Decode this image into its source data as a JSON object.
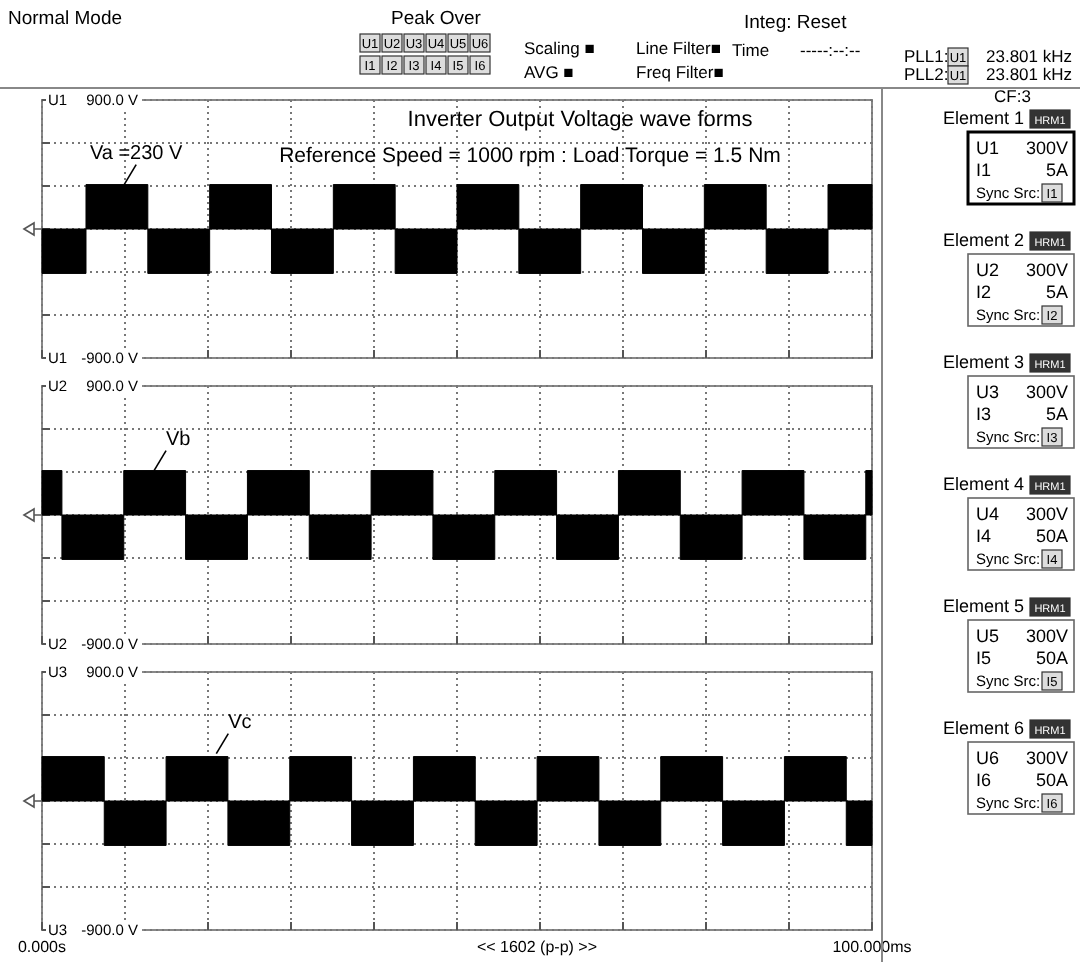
{
  "chart_data": [
    {
      "type": "area",
      "title": "Inverter Output Voltage wave forms",
      "subtitle": "Reference Speed = 1000 rpm : Load Torque = 1.5 Nm",
      "xlim": [
        0,
        100
      ],
      "ylim": [
        -900,
        900
      ],
      "xticks": [
        {
          "value": 0,
          "label": null
        },
        {
          "value": 10,
          "label": null
        },
        {
          "value": 20,
          "label": null
        },
        {
          "value": 30,
          "label": null
        },
        {
          "value": 40,
          "label": null
        },
        {
          "value": 50,
          "label": null
        },
        {
          "value": 60,
          "label": null
        },
        {
          "value": 70,
          "label": null
        },
        {
          "value": 80,
          "label": null
        },
        {
          "value": 90,
          "label": null
        },
        {
          "value": 100,
          "label": null
        }
      ],
      "ylabel": "U1",
      "yticks": [
        {
          "value": -900,
          "label": "-900.0 V"
        },
        {
          "value": -600,
          "label": null
        },
        {
          "value": -300,
          "label": null
        },
        {
          "value": 0,
          "label": null
        },
        {
          "value": 300,
          "label": null
        },
        {
          "value": 600,
          "label": null
        },
        {
          "value": 900,
          "label": "900.0 V"
        }
      ],
      "grid": true,
      "tick_labels": "y",
      "annotations": [
        {
          "text": "Va =230 V",
          "x": 9.9,
          "y": 310
        },
        "U1"
      ],
      "series": [
        {
          "color": "#000000",
          "x": [
            0,
            5.3,
            5.3,
            12.75,
            12.75,
            20.2,
            20.2,
            27.65,
            27.65,
            35.1,
            35.1,
            42.55,
            42.55,
            50,
            50,
            57.45,
            57.45,
            64.9,
            64.9,
            72.35,
            72.35,
            79.8,
            79.8,
            87.25,
            87.25,
            94.7,
            94.7,
            100
          ],
          "values": [
            -310,
            -310,
            310,
            310,
            -310,
            -310,
            310,
            310,
            -310,
            -310,
            310,
            310,
            -310,
            -310,
            310,
            310,
            -310,
            -310,
            310,
            310,
            -310,
            -310,
            310,
            310,
            -310,
            -310,
            310,
            310
          ]
        }
      ]
    },
    {
      "type": "area",
      "xlim": [
        0,
        100
      ],
      "ylim": [
        -900,
        900
      ],
      "xticks": [
        {
          "value": 0,
          "label": null
        },
        {
          "value": 10,
          "label": null
        },
        {
          "value": 20,
          "label": null
        },
        {
          "value": 30,
          "label": null
        },
        {
          "value": 40,
          "label": null
        },
        {
          "value": 50,
          "label": null
        },
        {
          "value": 60,
          "label": null
        },
        {
          "value": 70,
          "label": null
        },
        {
          "value": 80,
          "label": null
        },
        {
          "value": 90,
          "label": null
        },
        {
          "value": 100,
          "label": null
        }
      ],
      "ylabel": "U2",
      "yticks": [
        {
          "value": -900,
          "label": "-900.0 V"
        },
        {
          "value": -600,
          "label": null
        },
        {
          "value": -300,
          "label": null
        },
        {
          "value": 0,
          "label": null
        },
        {
          "value": 300,
          "label": null
        },
        {
          "value": 600,
          "label": null
        },
        {
          "value": 900,
          "label": "900.0 V"
        }
      ],
      "grid": true,
      "tick_labels": "y",
      "annotations": [
        {
          "text": "Vb",
          "x": 13.5,
          "y": 310
        },
        "U2"
      ],
      "series": [
        {
          "color": "#000000",
          "x": [
            0,
            2.4,
            2.4,
            9.85,
            9.85,
            17.3,
            17.3,
            24.75,
            24.75,
            32.2,
            32.2,
            39.65,
            39.65,
            47.1,
            47.1,
            54.55,
            54.55,
            62,
            62,
            69.45,
            69.45,
            76.9,
            76.9,
            84.35,
            84.35,
            91.8,
            91.8,
            99.25,
            99.25,
            100
          ],
          "values": [
            310,
            310,
            -310,
            -310,
            310,
            310,
            -310,
            -310,
            310,
            310,
            -310,
            -310,
            310,
            310,
            -310,
            -310,
            310,
            310,
            -310,
            -310,
            310,
            310,
            -310,
            -310,
            310,
            310,
            -310,
            -310,
            310,
            310
          ]
        }
      ]
    },
    {
      "type": "area",
      "xlabel": "<< 1602 (p-p) >>",
      "xlim": [
        0,
        100
      ],
      "ylim": [
        -900,
        900
      ],
      "xticks": [
        {
          "value": 0,
          "label": "0.000s"
        },
        {
          "value": 10,
          "label": null
        },
        {
          "value": 20,
          "label": null
        },
        {
          "value": 30,
          "label": null
        },
        {
          "value": 40,
          "label": null
        },
        {
          "value": 50,
          "label": null
        },
        {
          "value": 60,
          "label": null
        },
        {
          "value": 70,
          "label": null
        },
        {
          "value": 80,
          "label": null
        },
        {
          "value": 90,
          "label": null
        },
        {
          "value": 100,
          "label": "100.000ms"
        }
      ],
      "ylabel": "U3",
      "yticks": [
        {
          "value": -900,
          "label": "-900.0 V"
        },
        {
          "value": -600,
          "label": null
        },
        {
          "value": -300,
          "label": null
        },
        {
          "value": 0,
          "label": null
        },
        {
          "value": 300,
          "label": null
        },
        {
          "value": 600,
          "label": null
        },
        {
          "value": 900,
          "label": "900.0 V"
        }
      ],
      "grid": true,
      "annotations": [
        {
          "text": "Vc",
          "x": 21,
          "y": 330
        },
        "U3"
      ],
      "series": [
        {
          "color": "#000000",
          "x": [
            0,
            7.5,
            7.5,
            14.95,
            14.95,
            22.4,
            22.4,
            29.85,
            29.85,
            37.3,
            37.3,
            44.75,
            44.75,
            52.2,
            52.2,
            59.65,
            59.65,
            67.1,
            67.1,
            74.55,
            74.55,
            82,
            82,
            89.45,
            89.45,
            96.9,
            96.9,
            100
          ],
          "values": [
            310,
            310,
            -310,
            -310,
            310,
            310,
            -310,
            -310,
            310,
            310,
            -310,
            -310,
            310,
            310,
            -310,
            -310,
            310,
            310,
            -310,
            -310,
            310,
            310,
            -310,
            -310,
            310,
            310,
            -310,
            -310
          ]
        }
      ]
    },
    {
      "type": "other",
      "annotations": [
        "Normal Mode",
        "Peak Over",
        "U1",
        "U2",
        "U3",
        "U4",
        "U5",
        "U6",
        "I1",
        "I2",
        "I3",
        "I4",
        "I5",
        "I6",
        "Scaling ■",
        "AVG ■",
        "Line Filter■",
        "Freq Filter■",
        "Integ: Reset",
        "Time",
        "-----:--:--",
        "PLL1:",
        "U1",
        "23.801 kHz",
        "PLL2:",
        "U1",
        "23.801 kHz",
        "CF:3",
        "Element 1",
        "HRM1",
        "U1",
        "300V",
        "I1",
        "5A",
        "Sync Src:",
        "I1",
        "Element 2",
        "HRM1",
        "U2",
        "300V",
        "I2",
        "5A",
        "Sync Src:",
        "I2",
        "Element 3",
        "HRM1",
        "U3",
        "300V",
        "I3",
        "5A",
        "Sync Src:",
        "I3",
        "Element 4",
        "HRM1",
        "U4",
        "300V",
        "I4",
        "50A",
        "Sync Src:",
        "I4",
        "Element 5",
        "HRM1",
        "U5",
        "300V",
        "I5",
        "50A",
        "Sync Src:",
        "I5",
        "Element 6",
        "HRM1",
        "U6",
        "300V",
        "I6",
        "50A",
        "Sync Src:",
        "I6"
      ]
    }
  ]
}
